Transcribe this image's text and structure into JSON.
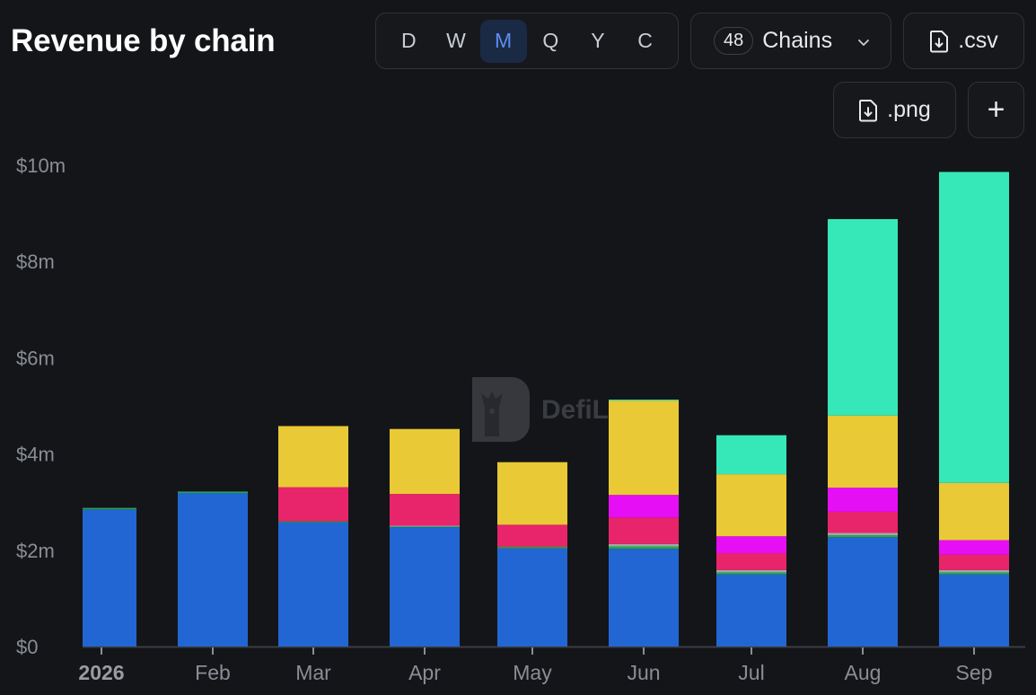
{
  "header": {
    "title": "Revenue by chain",
    "periods": [
      "D",
      "W",
      "M",
      "Q",
      "Y",
      "C"
    ],
    "active_period": "M",
    "chains_count": "48",
    "chains_label": "Chains",
    "csv_label": ".csv",
    "png_label": ".png",
    "add_label": "+"
  },
  "watermark": {
    "text": "DefiL"
  },
  "chart_data": {
    "type": "bar",
    "stacked": true,
    "title": "Revenue by chain",
    "categories": [
      "2026",
      "Feb",
      "Mar",
      "Apr",
      "May",
      "Jun",
      "Jul",
      "Aug",
      "Sep"
    ],
    "y_ticks": [
      "$0",
      "$2m",
      "$4m",
      "$6m",
      "$8m",
      "$10m"
    ],
    "ylim": [
      0,
      10
    ],
    "y_unit": "millions USD",
    "grid": false,
    "series": [
      {
        "color": "#2266d3",
        "values": [
          2.85,
          3.19,
          2.58,
          2.48,
          2.04,
          2.03,
          1.5,
          2.27,
          1.5
        ]
      },
      {
        "color": "#28a745",
        "values": [
          0.03,
          0.03,
          0.02,
          0.02,
          0.03,
          0.05,
          0.04,
          0.04,
          0.04
        ]
      },
      {
        "color": "#a3a6ab",
        "values": [
          0.0,
          0.0,
          0.0,
          0.01,
          0.0,
          0.05,
          0.05,
          0.05,
          0.05
        ]
      },
      {
        "color": "#e8256a",
        "values": [
          0.0,
          0.0,
          0.71,
          0.66,
          0.46,
          0.55,
          0.35,
          0.44,
          0.32
        ]
      },
      {
        "color": "#e60ef5",
        "values": [
          0.0,
          0.0,
          0.0,
          0.0,
          0.0,
          0.47,
          0.35,
          0.5,
          0.3
        ]
      },
      {
        "color": "#e9c935",
        "values": [
          0.0,
          0.0,
          1.27,
          1.35,
          1.3,
          1.96,
          1.29,
          1.5,
          1.19
        ]
      },
      {
        "color": "#36e8b8",
        "values": [
          0.0,
          0.0,
          0.0,
          0.0,
          0.0,
          0.02,
          0.81,
          4.08,
          6.46
        ]
      }
    ]
  }
}
